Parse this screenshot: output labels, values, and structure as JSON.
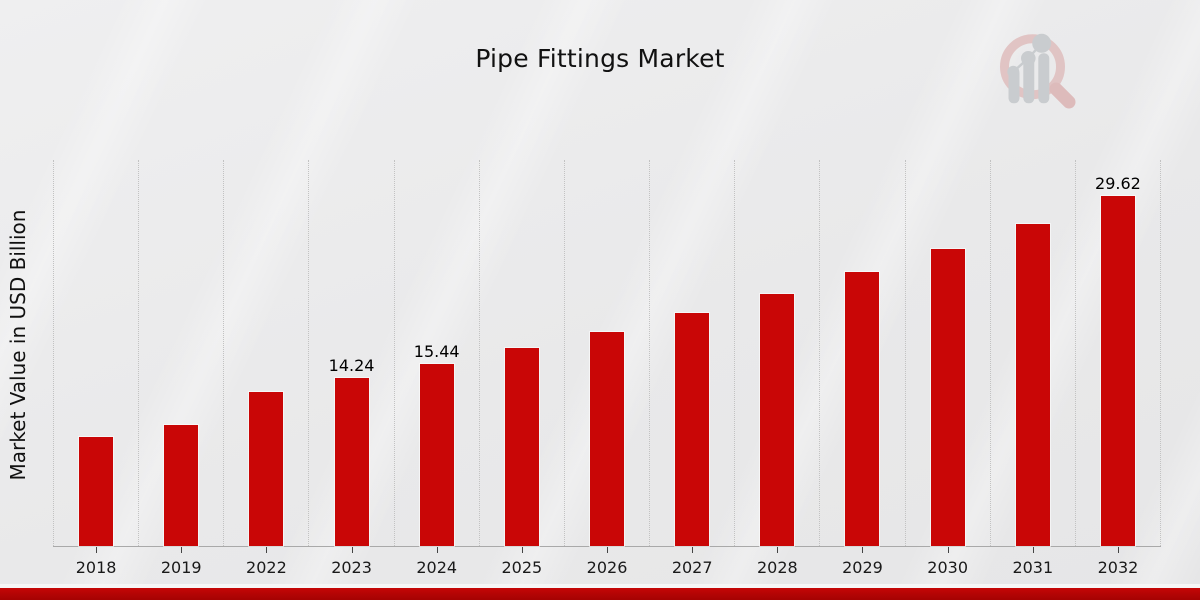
{
  "page": {
    "title": "Pipe Fittings Market",
    "watermark_icon": "mrfr-magnifier-bar-chart-logo"
  },
  "chart_data": {
    "type": "bar",
    "title": "Pipe Fittings Market",
    "xlabel": "",
    "ylabel": "Market Value in USD Billion",
    "categories": [
      "2018",
      "2019",
      "2022",
      "2023",
      "2024",
      "2025",
      "2026",
      "2027",
      "2028",
      "2029",
      "2030",
      "2031",
      "2032"
    ],
    "values": [
      9.22,
      10.25,
      13.05,
      14.24,
      15.44,
      16.75,
      18.17,
      19.71,
      21.39,
      23.2,
      25.17,
      27.31,
      29.62
    ],
    "data_labels": [
      null,
      null,
      null,
      "14.24",
      "15.44",
      null,
      null,
      null,
      null,
      null,
      null,
      null,
      "29.62"
    ],
    "bar_color": "#c90606",
    "ylim": [
      0,
      32.7
    ],
    "grid": "vertical-dotted",
    "legend": "none"
  },
  "footer": {
    "accent_bar_color": "#b00404"
  }
}
